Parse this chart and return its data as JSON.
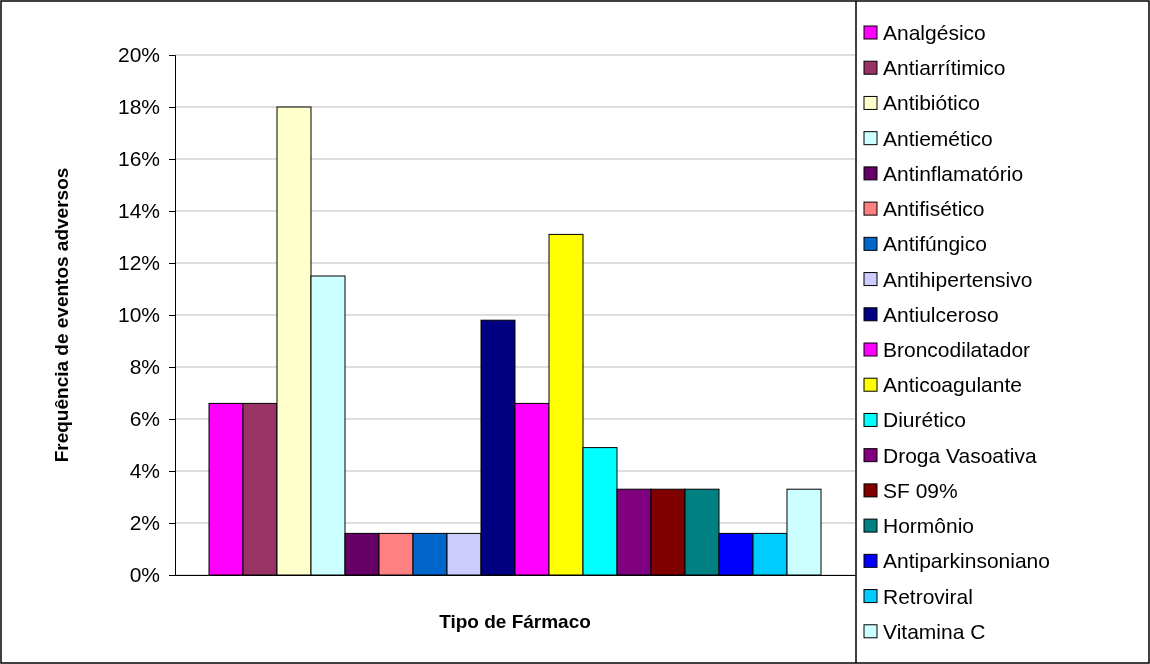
{
  "chart_data": {
    "type": "bar",
    "xlabel": "Tipo de Fármaco",
    "ylabel": "Frequência de eventos adversos",
    "categories": [
      null
    ],
    "ylim": [
      0,
      20
    ],
    "yticks": [
      {
        "value": 0,
        "label": "0%"
      },
      {
        "value": 2,
        "label": "2%"
      },
      {
        "value": 4,
        "label": "4%"
      },
      {
        "value": 6,
        "label": "6%"
      },
      {
        "value": 8,
        "label": "8%"
      },
      {
        "value": 10,
        "label": "10%"
      },
      {
        "value": 12,
        "label": "12%"
      },
      {
        "value": 14,
        "label": "14%"
      },
      {
        "value": 16,
        "label": "16%"
      },
      {
        "value": 18,
        "label": "18%"
      },
      {
        "value": 20,
        "label": "20%"
      }
    ],
    "grid": "y",
    "legend": "right",
    "series": [
      {
        "name": "Analgésico",
        "color": "#ff00ff",
        "values": [
          6.6
        ]
      },
      {
        "name": "Antiarrítimico",
        "color": "#993366",
        "values": [
          6.6
        ]
      },
      {
        "name": "Antibiótico",
        "color": "#ffffcc",
        "values": [
          18.0
        ]
      },
      {
        "name": "Antiemético",
        "color": "#ccffff",
        "values": [
          11.5
        ]
      },
      {
        "name": "Antinflamatório",
        "color": "#660066",
        "values": [
          1.6
        ]
      },
      {
        "name": "Antifisético",
        "color": "#ff8080",
        "values": [
          1.6
        ]
      },
      {
        "name": "Antifúngico",
        "color": "#0066cc",
        "values": [
          1.6
        ]
      },
      {
        "name": "Antihipertensivo",
        "color": "#ccccff",
        "values": [
          1.6
        ]
      },
      {
        "name": "Antiulceroso",
        "color": "#000080",
        "values": [
          9.8
        ]
      },
      {
        "name": "Broncodilatador",
        "color": "#ff00ff",
        "values": [
          6.6
        ]
      },
      {
        "name": "Anticoagulante",
        "color": "#ffff00",
        "values": [
          13.1
        ]
      },
      {
        "name": "Diurético",
        "color": "#00ffff",
        "values": [
          4.9
        ]
      },
      {
        "name": "Droga Vasoativa",
        "color": "#800080",
        "values": [
          3.3
        ]
      },
      {
        "name": "SF 09%",
        "color": "#800000",
        "values": [
          3.3
        ]
      },
      {
        "name": "Hormônio",
        "color": "#008080",
        "values": [
          3.3
        ]
      },
      {
        "name": "Antiparkinsoniano",
        "color": "#0000ff",
        "values": [
          1.6
        ]
      },
      {
        "name": "Retroviral",
        "color": "#00ccff",
        "values": [
          1.6
        ]
      },
      {
        "name": "Vitamina C",
        "color": "#ccffff",
        "values": [
          3.3
        ]
      }
    ]
  }
}
